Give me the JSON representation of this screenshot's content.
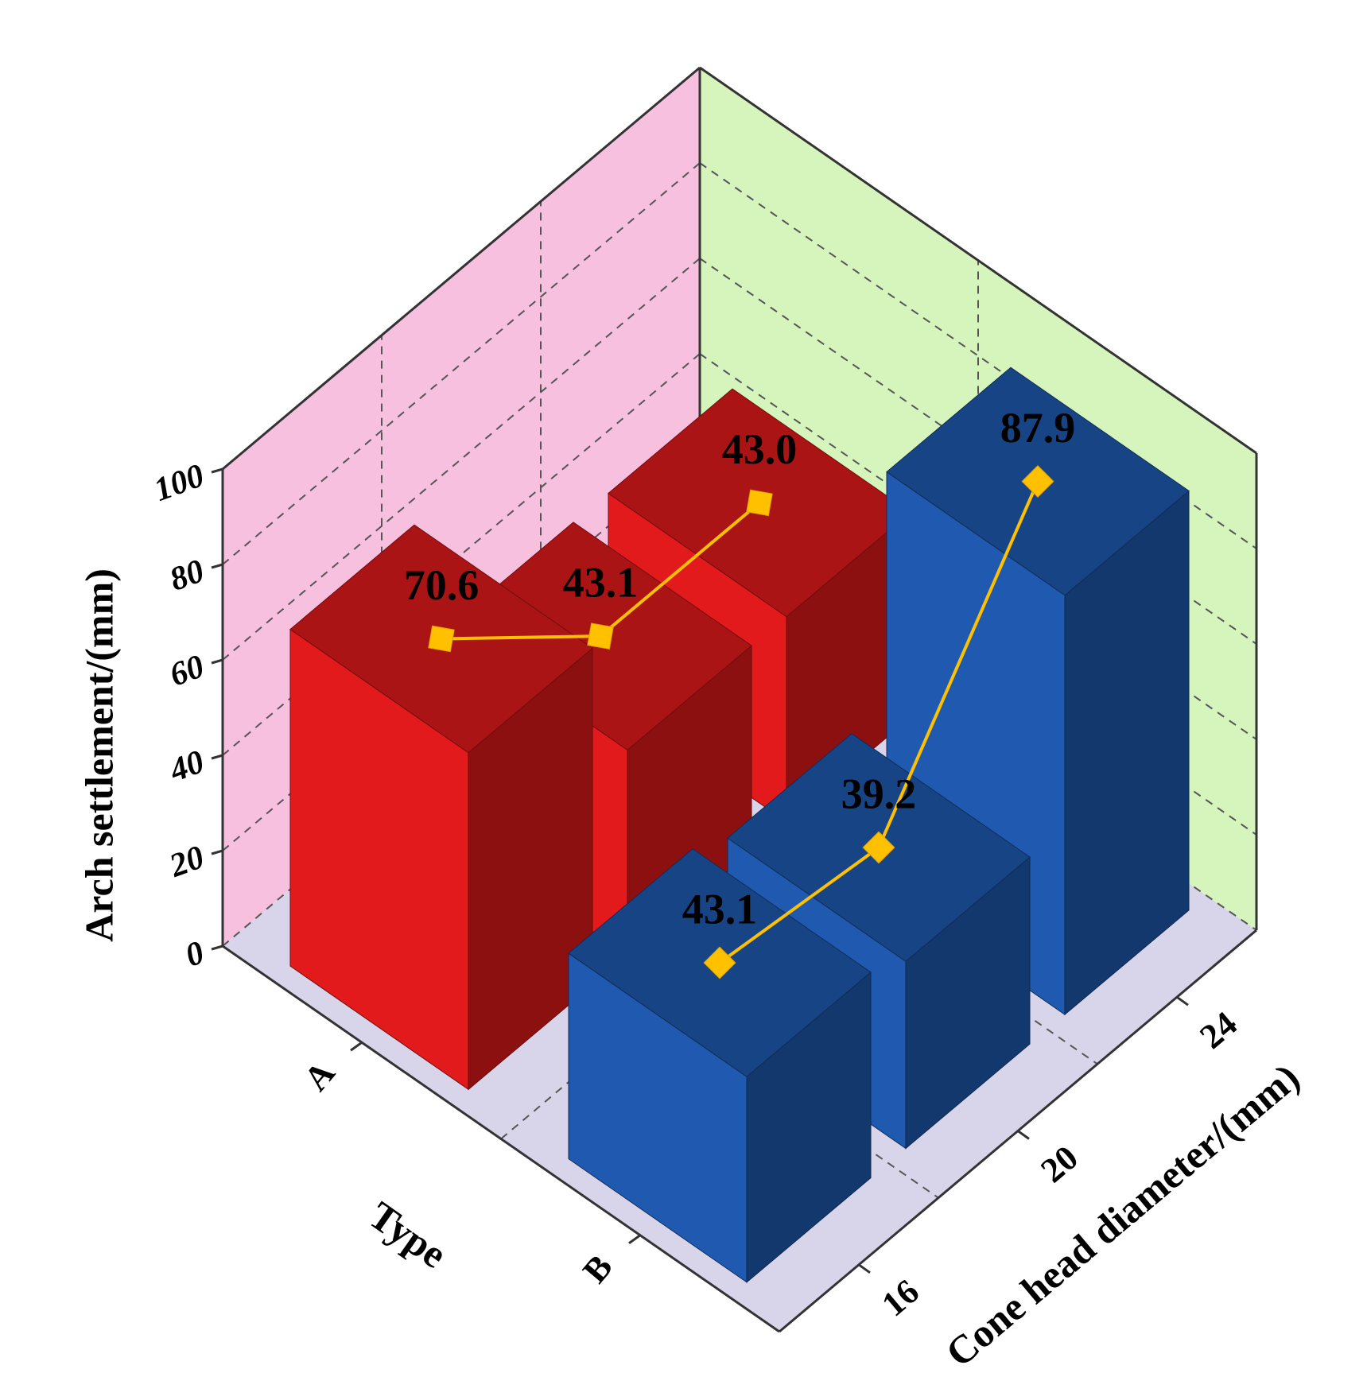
{
  "chart_data": {
    "type": "bar",
    "y_label": "Arch settlement/(mm)",
    "x_label": "Cone head diameter/(mm)",
    "series_axis_label": "Type",
    "categories": [
      "16",
      "20",
      "24"
    ],
    "series": [
      {
        "name": "A",
        "color": "#e31a1c",
        "values": [
          70.6,
          43.1,
          43.0
        ],
        "value_labels": [
          "70.6",
          "43.1",
          "43.0"
        ]
      },
      {
        "name": "B",
        "color": "#1f5ab0",
        "values": [
          43.1,
          39.2,
          87.9
        ],
        "value_labels": [
          "43.1",
          "39.2",
          "87.9"
        ]
      }
    ],
    "line_color": "#ffc000",
    "ylim": [
      0,
      100
    ],
    "yticks": [
      0,
      20,
      40,
      60,
      80,
      100
    ],
    "grid": true
  }
}
